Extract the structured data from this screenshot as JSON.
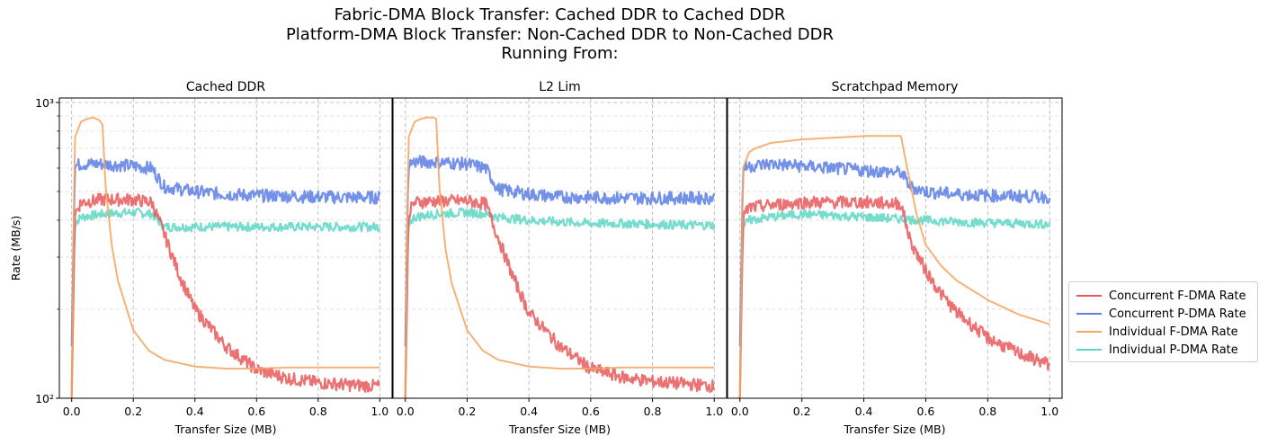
{
  "title_lines": [
    "Fabric-DMA Block Transfer: Cached DDR to Cached DDR",
    "Platform-DMA Block Transfer: Non-Cached DDR to Non-Cached DDR",
    "Running From:"
  ],
  "chart_data": {
    "type": "line",
    "ylabel": "Rate (MB/s)",
    "yscale": "log",
    "ylim": [
      100,
      1000
    ],
    "y_ticks": [
      "10²",
      "10³"
    ],
    "xlim": [
      -0.04,
      1.04
    ],
    "x_ticks": [
      "0.0",
      "0.2",
      "0.4",
      "0.6",
      "0.8",
      "1.0"
    ],
    "grid": true,
    "legend_position": "right",
    "legend": [
      {
        "name": "Concurrent F-DMA Rate",
        "color": "#e8585a"
      },
      {
        "name": "Concurrent P-DMA Rate",
        "color": "#5b7ee5"
      },
      {
        "name": "Individual F-DMA Rate",
        "color": "#f5a55e"
      },
      {
        "name": "Individual P-DMA Rate",
        "color": "#5ed6c3"
      }
    ],
    "panels": [
      {
        "title": "Cached DDR",
        "xlabel": "Transfer Size (MB)",
        "series": [
          {
            "name": "Concurrent F-DMA Rate",
            "x": [
              0.0,
              0.01,
              0.03,
              0.1,
              0.2,
              0.26,
              0.3,
              0.35,
              0.4,
              0.5,
              0.6,
              0.7,
              0.8,
              0.9,
              1.0
            ],
            "y": [
              100,
              420,
              460,
              470,
              470,
              460,
              360,
              260,
              200,
              150,
              125,
              117,
              113,
              111,
              110
            ]
          },
          {
            "name": "Concurrent P-DMA Rate",
            "x": [
              0.0,
              0.01,
              0.03,
              0.1,
              0.2,
              0.26,
              0.3,
              0.4,
              0.5,
              0.6,
              0.7,
              0.8,
              0.9,
              1.0
            ],
            "y": [
              150,
              610,
              620,
              620,
              610,
              600,
              520,
              500,
              490,
              485,
              483,
              480,
              478,
              478
            ]
          },
          {
            "name": "Individual F-DMA Rate",
            "x": [
              0.0,
              0.01,
              0.03,
              0.05,
              0.07,
              0.09,
              0.1,
              0.11,
              0.13,
              0.15,
              0.2,
              0.25,
              0.3,
              0.4,
              0.5,
              0.6,
              0.7,
              0.8,
              0.9,
              1.0
            ],
            "y": [
              100,
              760,
              860,
              880,
              890,
              870,
              840,
              520,
              330,
              250,
              170,
              145,
              135,
              128,
              126,
              126,
              127,
              127,
              127,
              127
            ]
          },
          {
            "name": "Individual P-DMA Rate",
            "x": [
              0.0,
              0.01,
              0.03,
              0.1,
              0.2,
              0.26,
              0.3,
              0.4,
              0.5,
              0.6,
              0.7,
              0.8,
              0.9,
              1.0
            ],
            "y": [
              110,
              390,
              410,
              420,
              425,
              420,
              380,
              380,
              380,
              380,
              380,
              380,
              380,
              380
            ]
          }
        ]
      },
      {
        "title": "L2 Lim",
        "xlabel": "Transfer Size (MB)",
        "series": [
          {
            "name": "Concurrent F-DMA Rate",
            "x": [
              0.0,
              0.01,
              0.03,
              0.1,
              0.2,
              0.26,
              0.3,
              0.35,
              0.4,
              0.5,
              0.6,
              0.7,
              0.8,
              0.9,
              1.0
            ],
            "y": [
              100,
              420,
              460,
              465,
              465,
              455,
              350,
              255,
              195,
              150,
              126,
              118,
              114,
              112,
              110
            ]
          },
          {
            "name": "Concurrent P-DMA Rate",
            "x": [
              0.0,
              0.01,
              0.03,
              0.1,
              0.2,
              0.26,
              0.3,
              0.4,
              0.5,
              0.6,
              0.7,
              0.8,
              0.9,
              1.0
            ],
            "y": [
              150,
              620,
              630,
              630,
              620,
              600,
              510,
              490,
              480,
              478,
              476,
              476,
              476,
              476
            ]
          },
          {
            "name": "Individual F-DMA Rate",
            "x": [
              0.0,
              0.01,
              0.03,
              0.05,
              0.07,
              0.09,
              0.1,
              0.11,
              0.13,
              0.15,
              0.2,
              0.25,
              0.3,
              0.4,
              0.5,
              0.6,
              0.7,
              0.8,
              0.9,
              1.0
            ],
            "y": [
              100,
              760,
              860,
              880,
              890,
              890,
              880,
              520,
              320,
              245,
              170,
              145,
              135,
              128,
              126,
              126,
              127,
              127,
              127,
              127
            ]
          },
          {
            "name": "Individual P-DMA Rate",
            "x": [
              0.0,
              0.01,
              0.03,
              0.1,
              0.2,
              0.26,
              0.3,
              0.4,
              0.5,
              0.6,
              0.7,
              0.8,
              0.9,
              1.0
            ],
            "y": [
              110,
              390,
              410,
              420,
              425,
              420,
              410,
              400,
              395,
              390,
              390,
              388,
              385,
              385
            ]
          }
        ]
      },
      {
        "title": "Scratchpad Memory",
        "xlabel": "Transfer Size (MB)",
        "series": [
          {
            "name": "Concurrent F-DMA Rate",
            "x": [
              0.0,
              0.01,
              0.03,
              0.1,
              0.2,
              0.3,
              0.4,
              0.52,
              0.55,
              0.6,
              0.65,
              0.7,
              0.8,
              0.9,
              1.0
            ],
            "y": [
              100,
              410,
              440,
              450,
              460,
              460,
              460,
              455,
              340,
              270,
              225,
              195,
              160,
              142,
              130
            ]
          },
          {
            "name": "Concurrent P-DMA Rate",
            "x": [
              0.0,
              0.01,
              0.03,
              0.1,
              0.2,
              0.3,
              0.4,
              0.52,
              0.55,
              0.6,
              0.7,
              0.8,
              0.9,
              1.0
            ],
            "y": [
              150,
              600,
              610,
              620,
              610,
              600,
              590,
              580,
              520,
              500,
              490,
              485,
              482,
              480
            ]
          },
          {
            "name": "Individual F-DMA Rate",
            "x": [
              0.0,
              0.01,
              0.03,
              0.05,
              0.1,
              0.2,
              0.3,
              0.4,
              0.52,
              0.54,
              0.57,
              0.6,
              0.65,
              0.7,
              0.8,
              0.9,
              1.0
            ],
            "y": [
              100,
              600,
              680,
              700,
              730,
              750,
              760,
              770,
              770,
              600,
              420,
              330,
              280,
              250,
              215,
              192,
              178
            ]
          },
          {
            "name": "Individual P-DMA Rate",
            "x": [
              0.0,
              0.01,
              0.03,
              0.1,
              0.2,
              0.3,
              0.4,
              0.5,
              0.6,
              0.7,
              0.8,
              0.9,
              1.0
            ],
            "y": [
              110,
              380,
              400,
              410,
              420,
              415,
              410,
              405,
              400,
              395,
              392,
              390,
              388
            ]
          }
        ]
      }
    ]
  }
}
